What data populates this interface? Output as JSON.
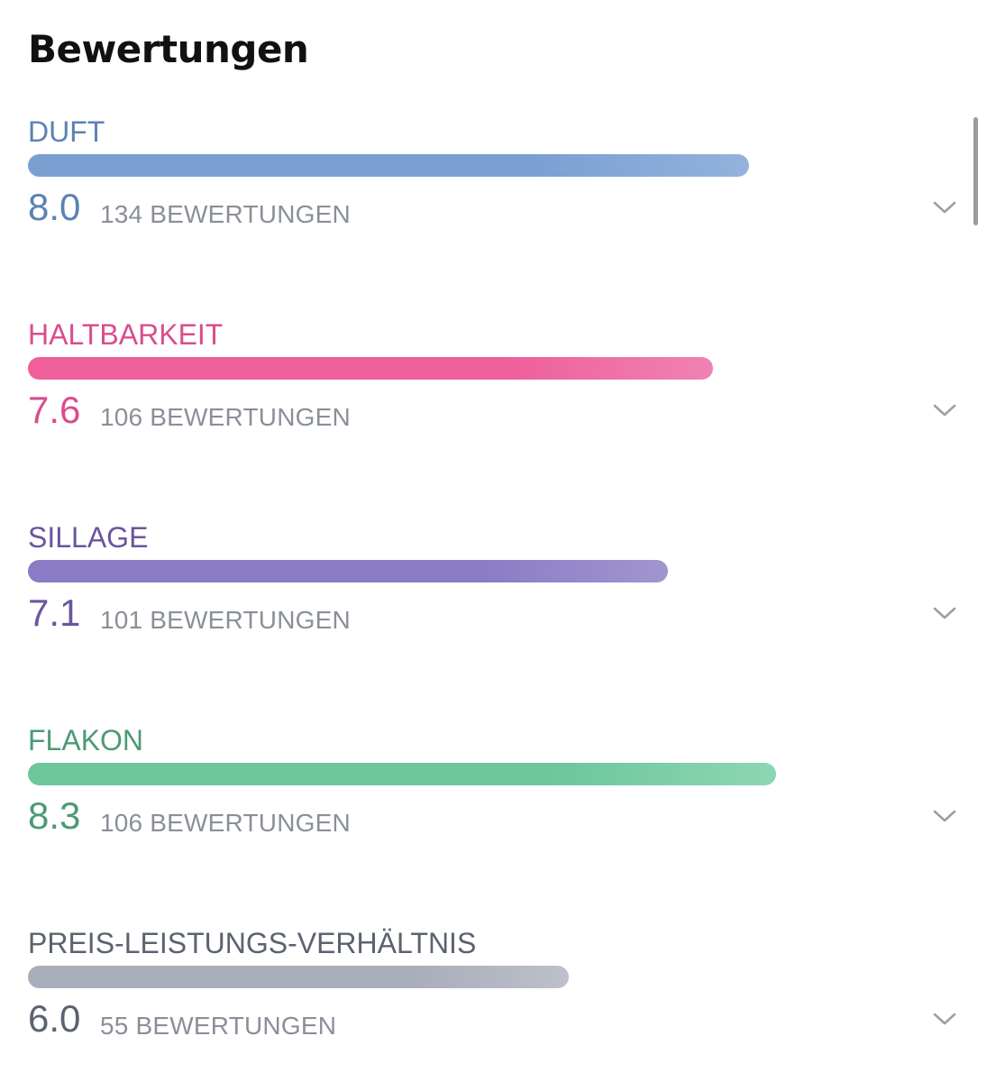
{
  "header": {
    "title": "Bewertungen"
  },
  "ratings": [
    {
      "label": "DUFT",
      "score": "8.0",
      "count_text": "134 BEWERTUNGEN",
      "value": 8.0,
      "color": "#5b82b3",
      "bar_start": "#7aa0d2",
      "bar_end": "#93b2dd"
    },
    {
      "label": "HALTBARKEIT",
      "score": "7.6",
      "count_text": "106 BEWERTUNGEN",
      "value": 7.6,
      "color": "#d94d8e",
      "bar_start": "#ee5f9c",
      "bar_end": "#f082b3"
    },
    {
      "label": "SILLAGE",
      "score": "7.1",
      "count_text": "101 BEWERTUNGEN",
      "value": 7.1,
      "color": "#6a559e",
      "bar_start": "#8a7bc4",
      "bar_end": "#a195d0"
    },
    {
      "label": "FLAKON",
      "score": "8.3",
      "count_text": "106 BEWERTUNGEN",
      "value": 8.3,
      "color": "#4c9a74",
      "bar_start": "#6cc79b",
      "bar_end": "#8dd6b2"
    },
    {
      "label": "PREIS-LEISTUNGS-VERHÄLTNIS",
      "score": "6.0",
      "count_text": "55 BEWERTUNGEN",
      "value": 6.0,
      "color": "#5b6270",
      "bar_start": "#a8adba",
      "bar_end": "#bcc0ca"
    }
  ],
  "icons": {
    "expand": "chevron-down-icon"
  }
}
